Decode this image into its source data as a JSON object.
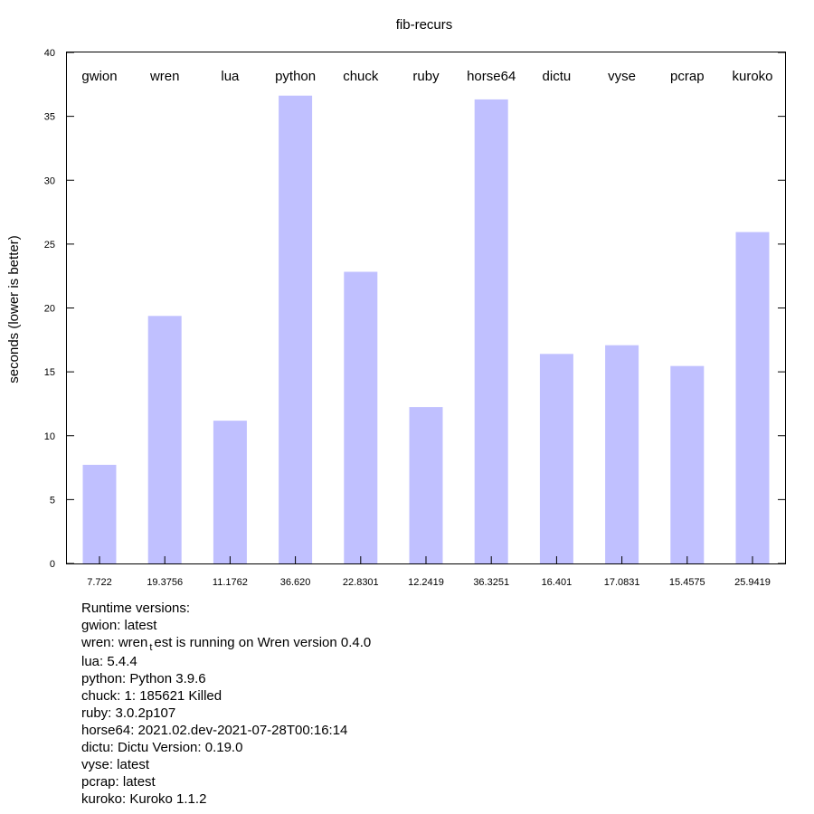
{
  "chart_data": {
    "type": "bar",
    "title": "fib-recurs",
    "xlabel": "",
    "ylabel": "seconds (lower is better)",
    "ylim": [
      0,
      40
    ],
    "yticks": [
      0,
      5,
      10,
      15,
      20,
      25,
      30,
      35,
      40
    ],
    "grid": false,
    "categories": [
      "gwion",
      "wren",
      "lua",
      "python",
      "chuck",
      "ruby",
      "horse64",
      "dictu",
      "vyse",
      "pcrap",
      "kuroko"
    ],
    "values": [
      7.722,
      19.3756,
      11.1762,
      36.62,
      22.8301,
      12.2419,
      36.3251,
      16.401,
      17.0831,
      15.4575,
      25.9419
    ],
    "value_labels": [
      "7.722",
      "19.3756",
      "11.1762",
      "36.620",
      "22.8301",
      "12.2419",
      "36.3251",
      "16.401",
      "17.0831",
      "15.4575",
      "25.9419"
    ],
    "bar_color": "#c0c0ff"
  },
  "notes": {
    "heading": "Runtime versions:",
    "lines": [
      "gwion: latest",
      "wren: wren|t|est is running on Wren version 0.4.0",
      "lua: 5.4.4",
      "python: Python 3.9.6",
      "chuck: 1: 185621 Killed",
      "ruby: 3.0.2p107",
      "horse64: 2021.02.dev-2021-07-28T00:16:14",
      "dictu: Dictu Version: 0.19.0",
      "vyse: latest",
      "pcrap: latest",
      "kuroko: Kuroko 1.1.2"
    ]
  }
}
